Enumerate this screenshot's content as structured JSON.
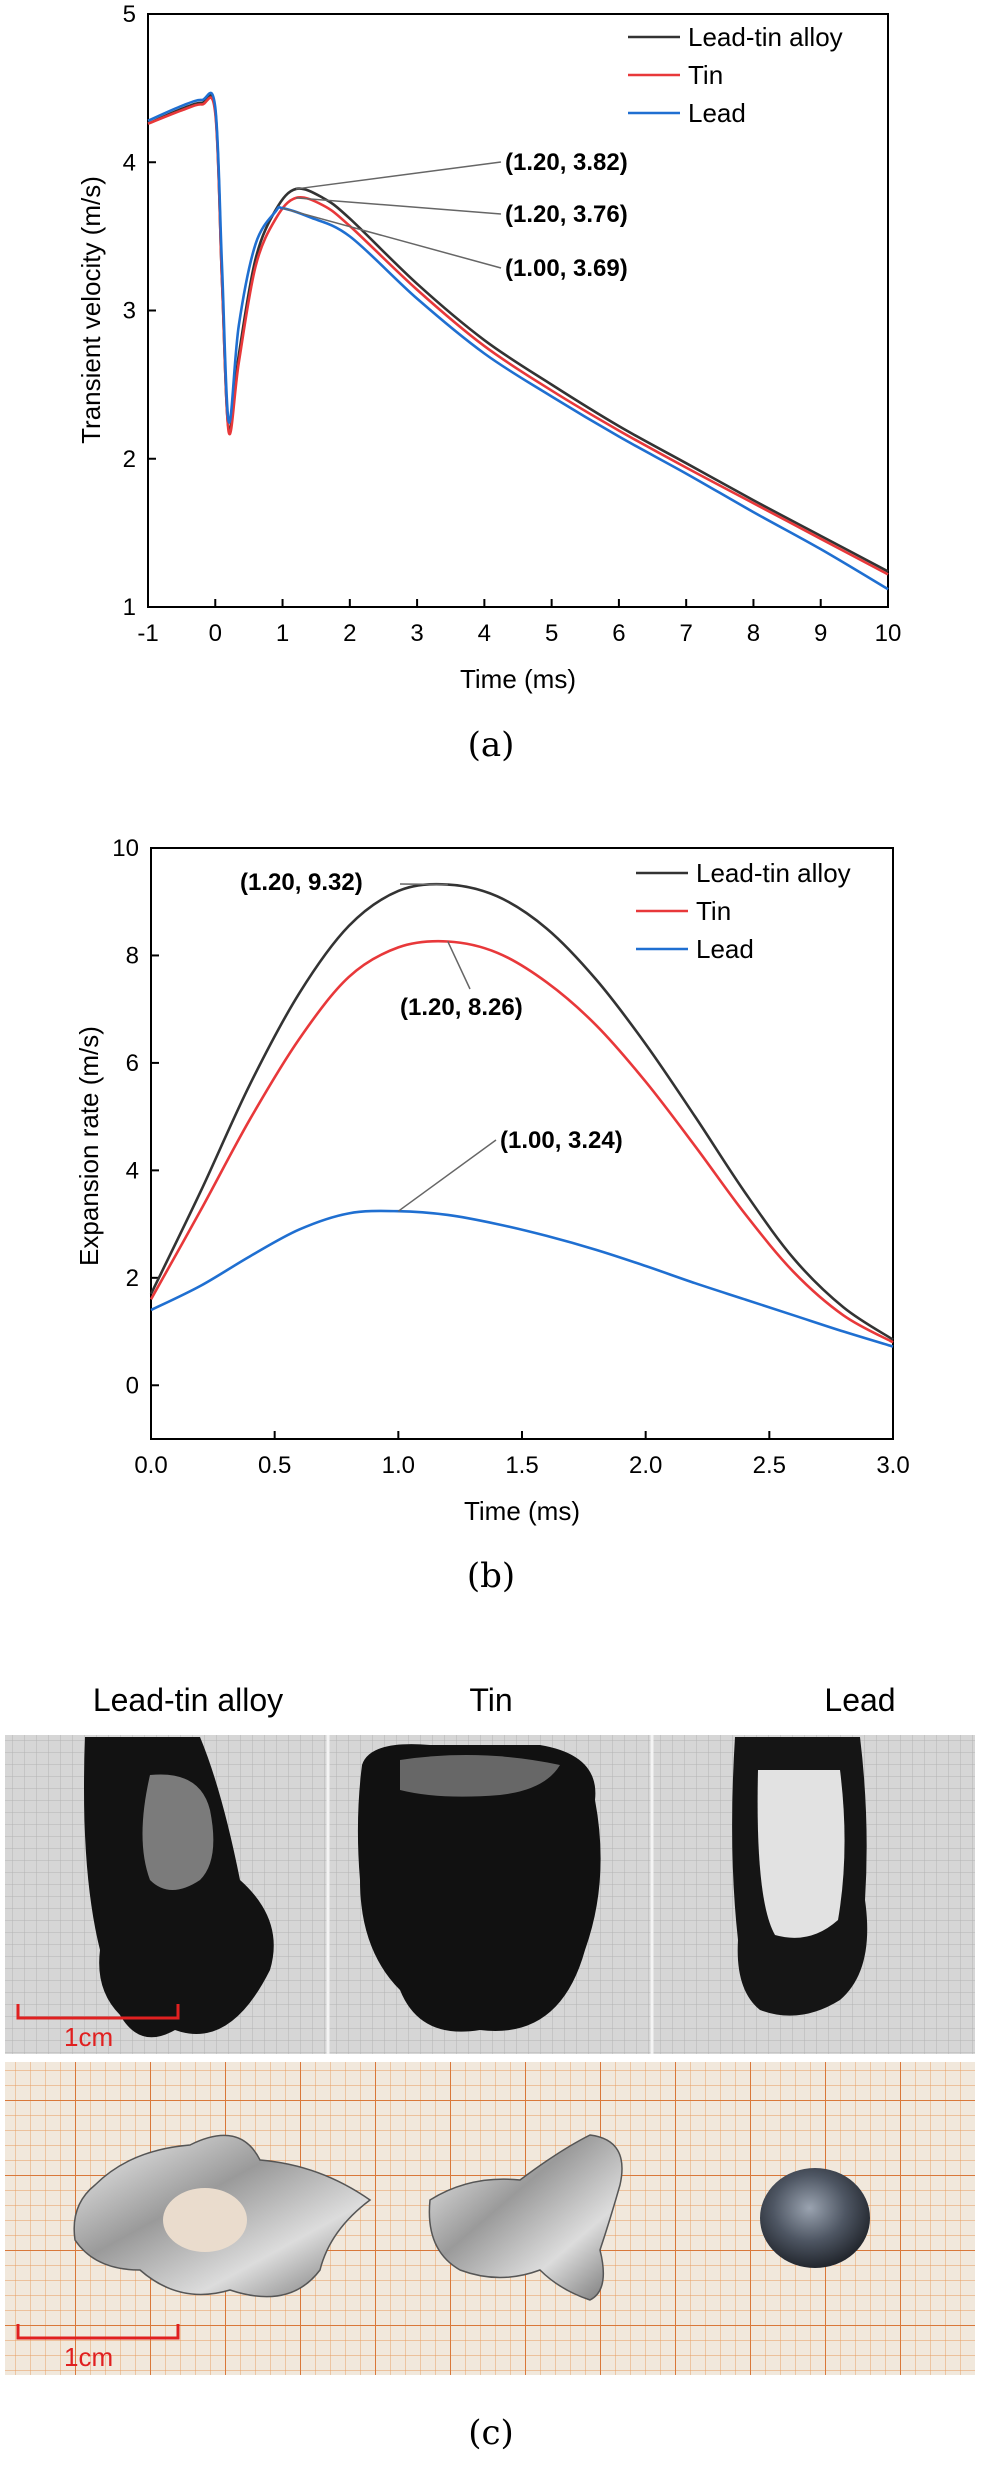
{
  "chart_data": [
    {
      "type": "line",
      "caption": "(a)",
      "xlabel": "Time (ms)",
      "ylabel": "Transient velocity (m/s)",
      "xlim": [
        -1,
        10
      ],
      "ylim": [
        1,
        5
      ],
      "xticks": [
        -1,
        0,
        1,
        2,
        3,
        4,
        5,
        6,
        7,
        8,
        9,
        10
      ],
      "yticks": [
        1,
        2,
        3,
        4,
        5
      ],
      "legend_position": "top-right",
      "colors": {
        "Lead-tin alloy": "#333333",
        "Tin": "#e8383a",
        "Lead": "#1f6fd1"
      },
      "series": [
        {
          "name": "Lead-tin alloy",
          "x": [
            -1,
            -0.5,
            -0.2,
            0,
            0.1,
            0.2,
            0.35,
            0.6,
            0.9,
            1.2,
            1.6,
            2.0,
            3.0,
            4.0,
            5.0,
            6.0,
            7.0,
            8.0,
            9.0,
            10.0
          ],
          "y": [
            4.26,
            4.36,
            4.4,
            4.35,
            3.2,
            2.2,
            2.7,
            3.35,
            3.68,
            3.82,
            3.76,
            3.62,
            3.18,
            2.8,
            2.5,
            2.22,
            1.97,
            1.72,
            1.48,
            1.24
          ]
        },
        {
          "name": "Tin",
          "x": [
            -1,
            -0.5,
            -0.2,
            0,
            0.1,
            0.2,
            0.35,
            0.6,
            0.9,
            1.2,
            1.6,
            2.0,
            3.0,
            4.0,
            5.0,
            6.0,
            7.0,
            8.0,
            9.0,
            10.0
          ],
          "y": [
            4.26,
            4.35,
            4.39,
            4.33,
            3.2,
            2.18,
            2.65,
            3.3,
            3.62,
            3.76,
            3.71,
            3.57,
            3.14,
            2.76,
            2.46,
            2.19,
            1.94,
            1.7,
            1.46,
            1.22
          ]
        },
        {
          "name": "Lead",
          "x": [
            -1,
            -0.5,
            -0.2,
            0,
            0.1,
            0.2,
            0.35,
            0.6,
            0.9,
            1.0,
            1.4,
            2.0,
            3.0,
            4.0,
            5.0,
            6.0,
            7.0,
            8.0,
            9.0,
            10.0
          ],
          "y": [
            4.28,
            4.38,
            4.42,
            4.37,
            3.3,
            2.25,
            2.9,
            3.45,
            3.67,
            3.69,
            3.63,
            3.5,
            3.08,
            2.71,
            2.42,
            2.15,
            1.9,
            1.64,
            1.39,
            1.12
          ]
        }
      ],
      "annotations": [
        {
          "label": "(1.20, 3.82)",
          "x": 1.2,
          "y": 3.82
        },
        {
          "label": "(1.20, 3.76)",
          "x": 1.2,
          "y": 3.76
        },
        {
          "label": "(1.00, 3.69)",
          "x": 1.0,
          "y": 3.69
        }
      ]
    },
    {
      "type": "line",
      "caption": "(b)",
      "xlabel": "Time (ms)",
      "ylabel": "Expansion rate (m/s)",
      "xlim": [
        0,
        3
      ],
      "ylim": [
        -1,
        10
      ],
      "xticks": [
        0.0,
        0.5,
        1.0,
        1.5,
        2.0,
        2.5,
        3.0
      ],
      "xtick_labels": [
        "0.0",
        "0.5",
        "1.0",
        "1.5",
        "2.0",
        "2.5",
        "3.0"
      ],
      "yticks": [
        0,
        2,
        4,
        6,
        8,
        10
      ],
      "legend_position": "top-right",
      "colors": {
        "Lead-tin alloy": "#333333",
        "Tin": "#e8383a",
        "Lead": "#1f6fd1"
      },
      "series": [
        {
          "name": "Lead-tin alloy",
          "x": [
            0,
            0.2,
            0.4,
            0.6,
            0.8,
            1.0,
            1.2,
            1.4,
            1.6,
            1.8,
            2.0,
            2.2,
            2.4,
            2.6,
            2.8,
            3.0
          ],
          "y": [
            1.7,
            3.6,
            5.6,
            7.3,
            8.55,
            9.2,
            9.32,
            9.1,
            8.5,
            7.55,
            6.35,
            5.0,
            3.6,
            2.35,
            1.45,
            0.85
          ]
        },
        {
          "name": "Tin",
          "x": [
            0,
            0.2,
            0.4,
            0.6,
            0.8,
            1.0,
            1.2,
            1.4,
            1.6,
            1.8,
            2.0,
            2.2,
            2.4,
            2.6,
            2.8,
            3.0
          ],
          "y": [
            1.6,
            3.25,
            4.95,
            6.45,
            7.6,
            8.15,
            8.26,
            8.05,
            7.5,
            6.7,
            5.65,
            4.45,
            3.2,
            2.1,
            1.3,
            0.8
          ]
        },
        {
          "name": "Lead",
          "x": [
            0,
            0.2,
            0.4,
            0.6,
            0.8,
            1.0,
            1.2,
            1.4,
            1.6,
            1.8,
            2.0,
            2.2,
            2.4,
            2.6,
            2.8,
            3.0
          ],
          "y": [
            1.4,
            1.85,
            2.4,
            2.9,
            3.2,
            3.24,
            3.17,
            3.0,
            2.78,
            2.52,
            2.22,
            1.9,
            1.6,
            1.3,
            1.0,
            0.72
          ]
        }
      ],
      "annotations": [
        {
          "label": "(1.20, 9.32)",
          "x": 1.2,
          "y": 9.32
        },
        {
          "label": "(1.20, 8.26)",
          "x": 1.2,
          "y": 8.26
        },
        {
          "label": "(1.00, 3.24)",
          "x": 1.0,
          "y": 3.24
        }
      ]
    }
  ],
  "photos": {
    "caption": "(c)",
    "headers": [
      "Lead-tin alloy",
      "Tin",
      "Lead"
    ],
    "scale_label_top": "1cm",
    "scale_label_bottom": "1cm"
  }
}
